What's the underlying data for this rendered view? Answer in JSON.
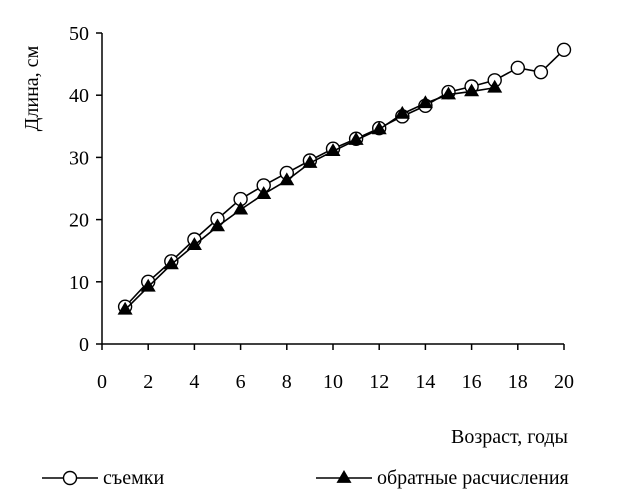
{
  "chart_data": {
    "type": "line",
    "xlabel": "Возраст, годы",
    "ylabel": "Длина, см",
    "xlim": [
      0,
      20
    ],
    "ylim": [
      0,
      50
    ],
    "xticks": [
      0,
      2,
      4,
      6,
      8,
      10,
      12,
      14,
      16,
      18,
      20
    ],
    "yticks": [
      0,
      10,
      20,
      30,
      40,
      50
    ],
    "grid": false,
    "legend_position": "bottom",
    "series": [
      {
        "name": "съемки",
        "marker": "open-circle",
        "color": "#000000",
        "x": [
          1,
          2,
          3,
          4,
          5,
          6,
          7,
          8,
          9,
          10,
          11,
          12,
          13,
          14,
          15,
          16,
          17,
          18,
          19,
          20
        ],
        "y": [
          6.0,
          10.0,
          13.3,
          16.8,
          20.1,
          23.3,
          25.5,
          27.5,
          29.5,
          31.4,
          33.0,
          34.7,
          36.6,
          38.3,
          40.5,
          41.4,
          42.4,
          44.4,
          43.7,
          47.3
        ]
      },
      {
        "name": "обратные расчисления",
        "marker": "filled-triangle",
        "color": "#000000",
        "x": [
          1,
          2,
          3,
          4,
          5,
          6,
          7,
          8,
          9,
          10,
          11,
          12,
          13,
          14,
          15,
          16,
          17
        ],
        "y": [
          5.5,
          9.2,
          12.8,
          15.9,
          18.9,
          21.6,
          24.1,
          26.3,
          29.1,
          31.0,
          32.8,
          34.5,
          37.0,
          38.7,
          40.1,
          40.6,
          41.2
        ]
      }
    ]
  }
}
